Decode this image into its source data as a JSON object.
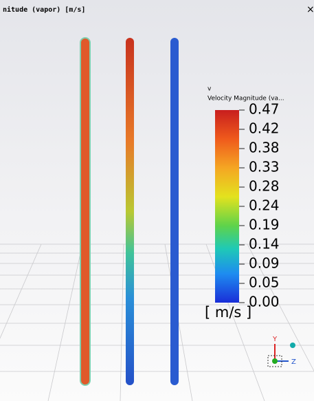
{
  "header": {
    "title": "nitude (vapor)   [m/s]",
    "close": "×"
  },
  "legend": {
    "symbol": "v",
    "title": "Velocity Magnitude (va...",
    "ticks": [
      "0.47",
      "0.42",
      "0.38",
      "0.33",
      "0.28",
      "0.24",
      "0.19",
      "0.14",
      "0.09",
      "0.05",
      "0.00"
    ],
    "unit": "[ m/s ]"
  },
  "triad": {
    "y": "Y",
    "z": "Z"
  }
}
